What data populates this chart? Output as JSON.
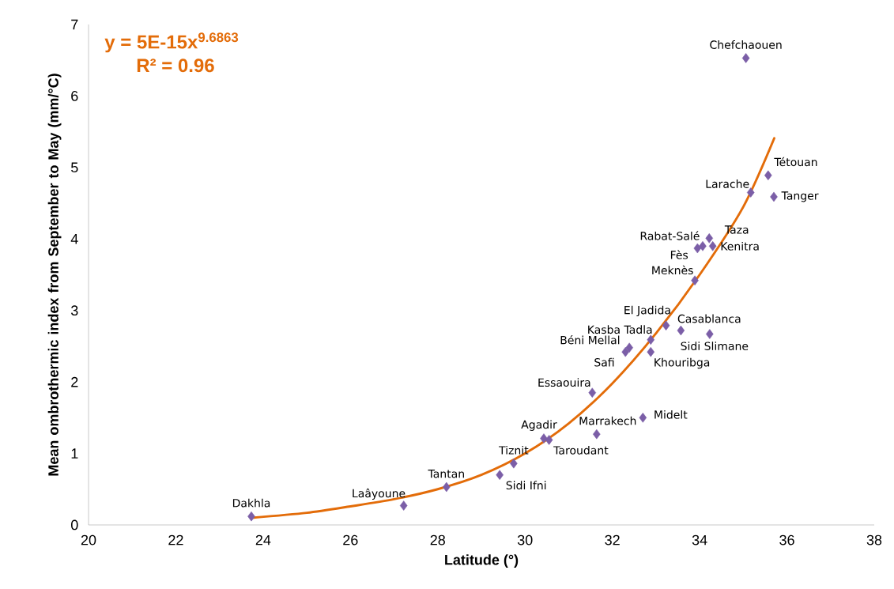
{
  "chart_data": {
    "type": "scatter",
    "xlabel": "Latitude (°)",
    "ylabel": "Mean ombrothermic index from September to May (mm/°C)",
    "xlim": [
      20,
      38
    ],
    "xticks": [
      20,
      22,
      24,
      26,
      28,
      30,
      32,
      34,
      36,
      38
    ],
    "ylim": [
      0,
      7
    ],
    "yticks": [
      0,
      1,
      2,
      3,
      4,
      5,
      6,
      7
    ],
    "grid": false,
    "marker": "diamond",
    "series": [
      {
        "color": "#7b5ea7",
        "x": [
          23.73,
          27.22,
          28.2,
          29.42,
          29.74,
          30.43,
          30.55,
          31.64,
          32.7,
          31.54,
          32.39,
          32.3,
          32.88,
          32.88,
          33.23,
          33.57,
          34.23,
          33.89,
          33.95,
          34.07,
          34.22,
          34.3,
          35.17,
          35.57,
          35.7,
          35.06
        ],
        "values": [
          0.12,
          0.27,
          0.53,
          0.7,
          0.86,
          1.21,
          1.19,
          1.27,
          1.5,
          1.85,
          2.48,
          2.42,
          2.59,
          2.42,
          2.79,
          2.72,
          2.67,
          3.42,
          3.87,
          3.9,
          4.01,
          3.9,
          4.65,
          4.89,
          4.59,
          6.53
        ]
      },
      {
        "type": "line",
        "color": "#e36c09",
        "line_style": "solid",
        "marker": "none",
        "x": [
          23.73,
          25,
          26,
          27,
          28,
          29,
          30,
          31,
          32,
          33,
          34,
          35,
          35.71
        ],
        "values": [
          0.1,
          0.17,
          0.26,
          0.36,
          0.5,
          0.7,
          1.0,
          1.42,
          1.98,
          2.68,
          3.5,
          4.45,
          5.41
        ]
      }
    ],
    "annotations": [
      "y = 5E-15x$^{9.6863}$",
      "R² = 0.96",
      {
        "text": "Dakhla",
        "x": 23.73,
        "y": 0.12
      },
      {
        "text": "Laâyoune",
        "x": 27.22,
        "y": 0.27
      },
      {
        "text": "Tantan",
        "x": 28.2,
        "y": 0.53
      },
      {
        "text": "Sidi Ifni",
        "x": 29.42,
        "y": 0.7
      },
      {
        "text": "Tiznit",
        "x": 29.74,
        "y": 0.86
      },
      {
        "text": "Agadir",
        "x": 30.43,
        "y": 1.21
      },
      {
        "text": "Taroudant",
        "x": 30.55,
        "y": 1.19
      },
      {
        "text": "Marrakech",
        "x": 31.64,
        "y": 1.27
      },
      {
        "text": "Midelt",
        "x": 32.7,
        "y": 1.5
      },
      {
        "text": "Essaouira",
        "x": 31.54,
        "y": 1.85
      },
      {
        "text": "Béni Mellal",
        "x": 32.39,
        "y": 2.48
      },
      {
        "text": "Safi",
        "x": 32.3,
        "y": 2.42
      },
      {
        "text": "Kasba Tadla",
        "x": 32.88,
        "y": 2.59
      },
      {
        "text": "Khouribga",
        "x": 32.88,
        "y": 2.42
      },
      {
        "text": "El Jadida",
        "x": 33.23,
        "y": 2.79
      },
      {
        "text": "Casablanca",
        "x": 33.57,
        "y": 2.72
      },
      {
        "text": "Sidi Slimane",
        "x": 34.23,
        "y": 2.67
      },
      {
        "text": "Meknès",
        "x": 33.89,
        "y": 3.42
      },
      {
        "text": "Fès",
        "x": 33.95,
        "y": 3.87
      },
      {
        "text": "Rabat-Salé",
        "x": 34.07,
        "y": 3.9
      },
      {
        "text": "Taza",
        "x": 34.22,
        "y": 4.01
      },
      {
        "text": "Kenitra",
        "x": 34.3,
        "y": 3.9
      },
      {
        "text": "Larache",
        "x": 35.17,
        "y": 4.65
      },
      {
        "text": "Tétouan",
        "x": 35.57,
        "y": 4.89
      },
      {
        "text": "Tanger",
        "x": 35.7,
        "y": 4.59
      },
      {
        "text": "Chefchaouen",
        "x": 35.06,
        "y": 6.53
      }
    ]
  }
}
